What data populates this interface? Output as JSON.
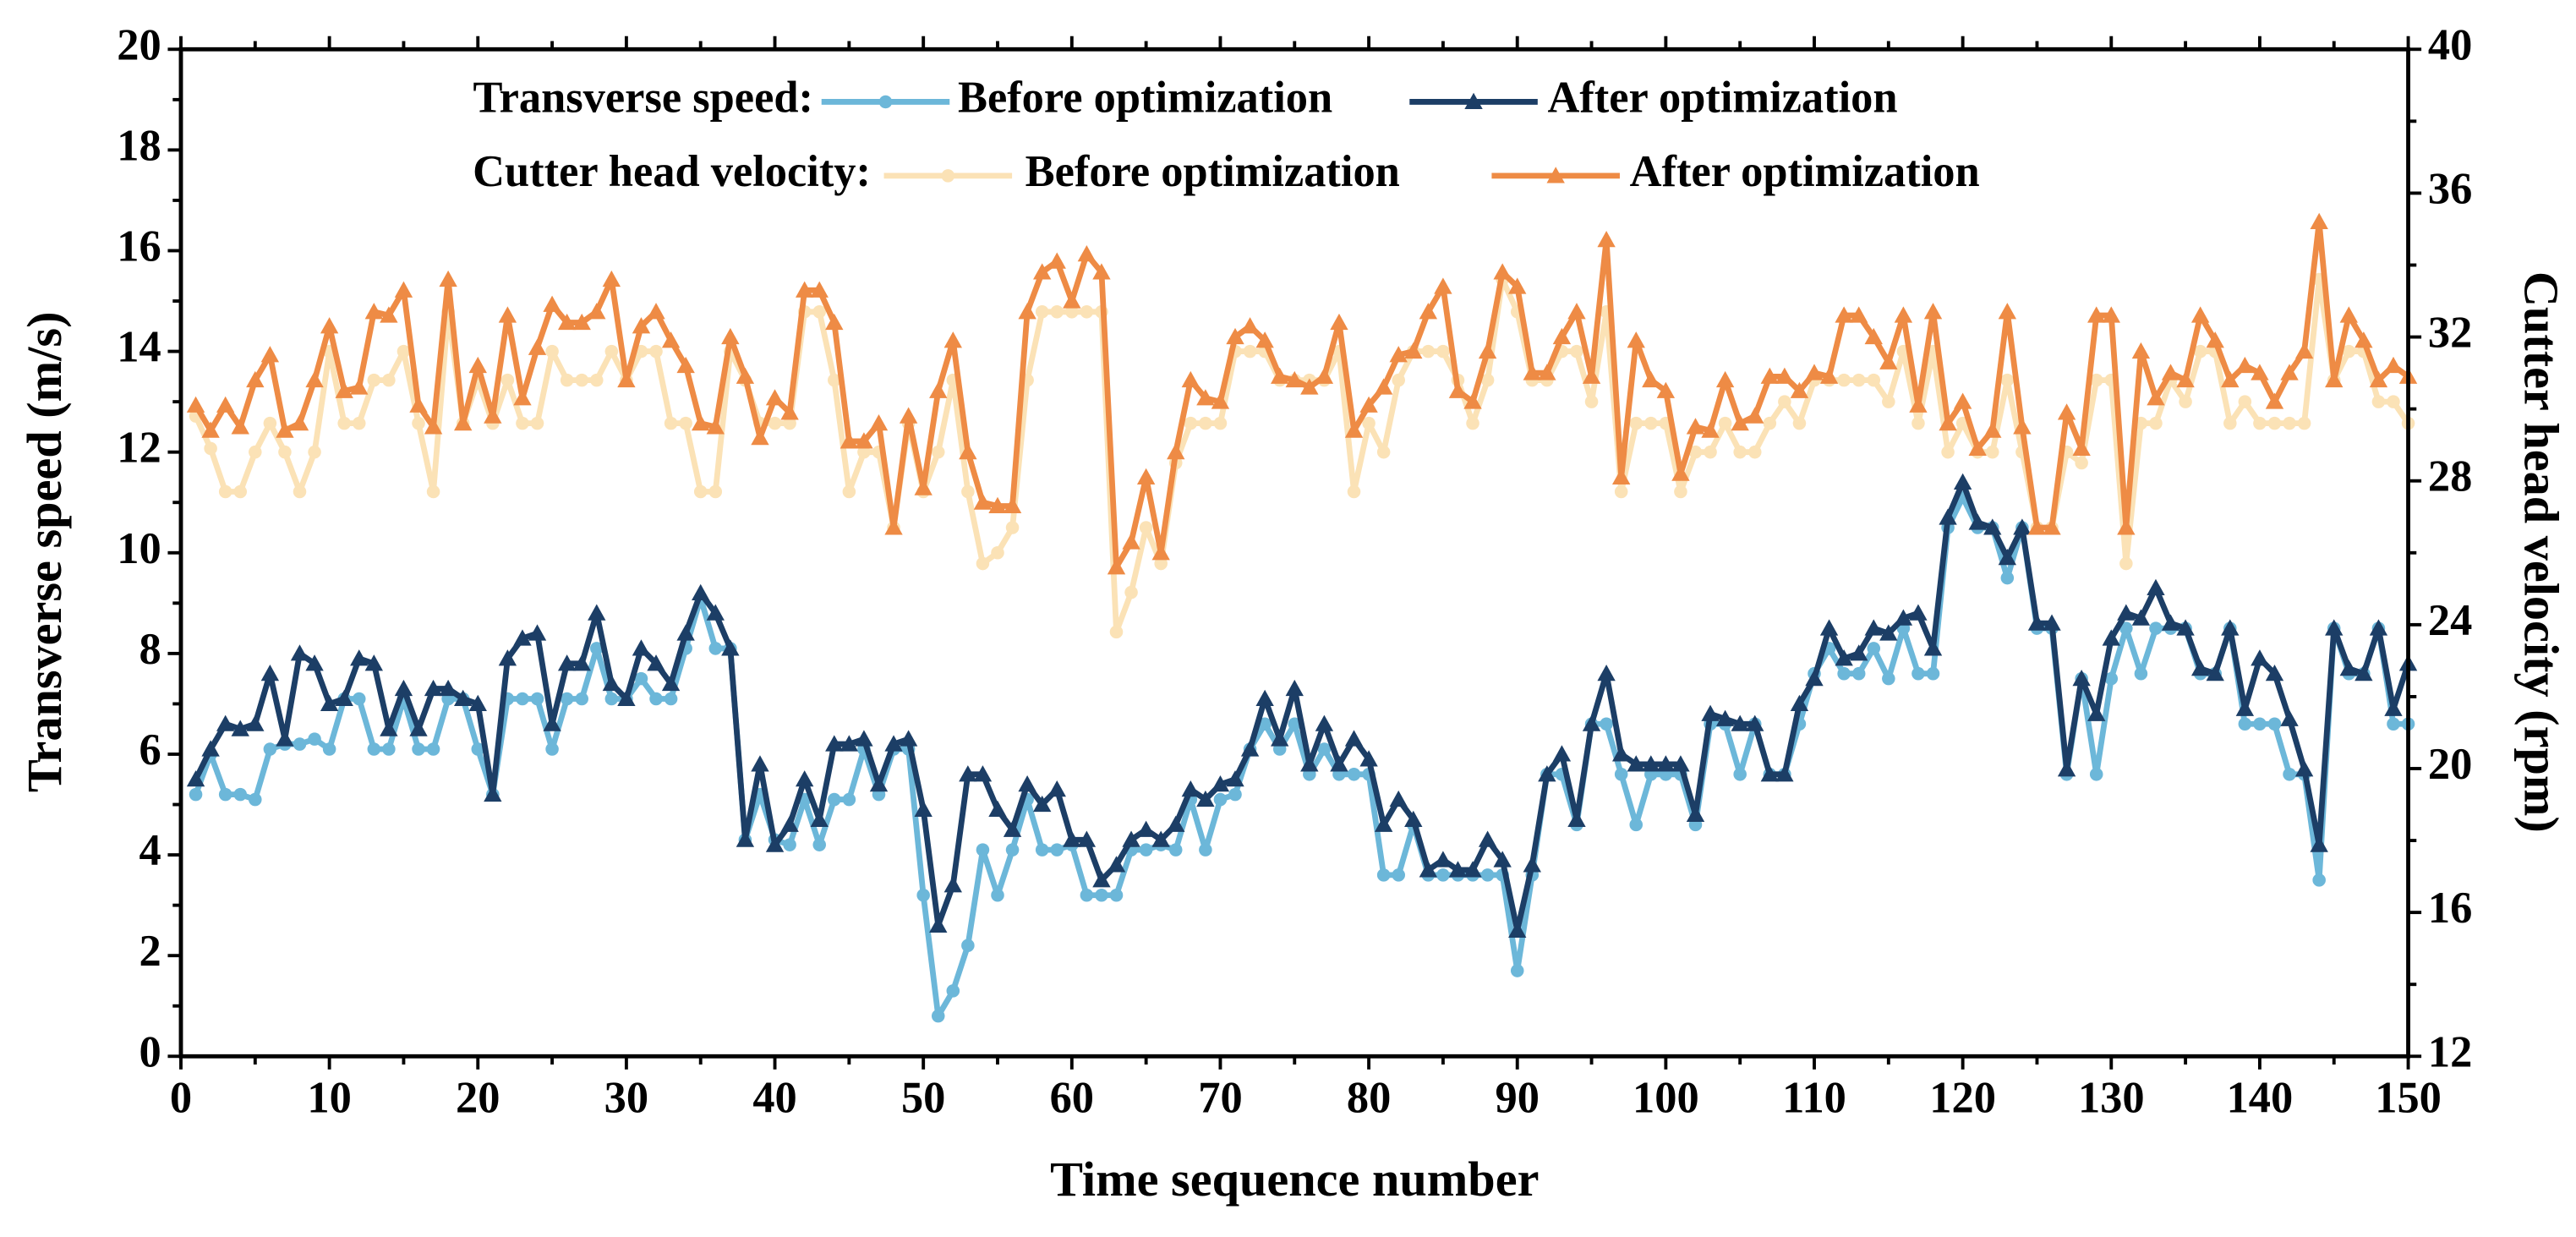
{
  "chart_data": {
    "type": "line",
    "xlabel": "Time sequence number",
    "ylabel": "Transverse speed (m/s)",
    "y2label": "Cutter head velocity (rpm)",
    "legend_groups": [
      "Transverse speed:",
      "Cutter head velocity:"
    ],
    "xlim": [
      0,
      150
    ],
    "xticks": [
      0,
      10,
      20,
      30,
      40,
      50,
      60,
      70,
      80,
      90,
      100,
      110,
      120,
      130,
      140,
      150
    ],
    "ylim": [
      0,
      20
    ],
    "yticks": [
      0,
      2,
      4,
      6,
      8,
      10,
      12,
      14,
      16,
      18,
      20
    ],
    "y2lim": [
      12,
      40
    ],
    "y2ticks": [
      12,
      16,
      20,
      24,
      28,
      32,
      36,
      40
    ],
    "grid": false,
    "legend": "top",
    "x": [
      1,
      2,
      3,
      4,
      5,
      6,
      7,
      8,
      9,
      10,
      11,
      12,
      13,
      14,
      15,
      16,
      17,
      18,
      19,
      20,
      21,
      22,
      23,
      24,
      25,
      26,
      27,
      28,
      29,
      30,
      31,
      32,
      33,
      34,
      35,
      36,
      37,
      38,
      39,
      40,
      41,
      42,
      43,
      44,
      45,
      46,
      47,
      48,
      49,
      50,
      51,
      52,
      53,
      54,
      55,
      56,
      57,
      58,
      59,
      60,
      61,
      62,
      63,
      64,
      65,
      66,
      67,
      68,
      69,
      70,
      71,
      72,
      73,
      74,
      75,
      76,
      77,
      78,
      79,
      80,
      81,
      82,
      83,
      84,
      85,
      86,
      87,
      88,
      89,
      90,
      91,
      92,
      93,
      94,
      95,
      96,
      97,
      98,
      99,
      100,
      101,
      102,
      103,
      104,
      105,
      106,
      107,
      108,
      109,
      110,
      111,
      112,
      113,
      114,
      115,
      116,
      117,
      118,
      119,
      120,
      121,
      122,
      123,
      124,
      125,
      126,
      127,
      128,
      129,
      130,
      131,
      132,
      133,
      134,
      135,
      136,
      137,
      138,
      139,
      140,
      141,
      142,
      143,
      144,
      145,
      146,
      147,
      148,
      149,
      150
    ],
    "series": [
      {
        "name": "Before optimization",
        "color": "#6cb7d9",
        "marker": "circle",
        "axis": "y",
        "values": [
          5.2,
          6.0,
          5.2,
          5.2,
          5.1,
          6.1,
          6.2,
          6.2,
          6.3,
          6.1,
          7.1,
          7.1,
          6.1,
          6.1,
          7.1,
          6.1,
          6.1,
          7.1,
          7.1,
          6.1,
          5.2,
          7.1,
          7.1,
          7.1,
          6.1,
          7.1,
          7.1,
          8.1,
          7.1,
          7.1,
          7.5,
          7.1,
          7.1,
          8.1,
          9.1,
          8.1,
          8.1,
          4.3,
          5.2,
          4.3,
          4.2,
          5.1,
          4.2,
          5.1,
          5.1,
          6.1,
          5.2,
          6.1,
          6.1,
          3.2,
          0.8,
          1.3,
          2.2,
          4.1,
          3.2,
          4.1,
          5.1,
          4.1,
          4.1,
          4.2,
          3.2,
          3.2,
          3.2,
          4.1,
          4.1,
          4.2,
          4.1,
          5.1,
          4.1,
          5.1,
          5.2,
          6.1,
          6.6,
          6.1,
          6.6,
          5.6,
          6.1,
          5.6,
          5.6,
          5.6,
          3.6,
          3.6,
          4.6,
          3.6,
          3.6,
          3.6,
          3.6,
          3.6,
          3.6,
          1.7,
          3.6,
          5.6,
          5.6,
          4.6,
          6.6,
          6.6,
          5.6,
          4.6,
          5.6,
          5.6,
          5.6,
          4.6,
          6.6,
          6.6,
          5.6,
          6.6,
          5.6,
          5.6,
          6.6,
          7.6,
          8.1,
          7.6,
          7.6,
          8.1,
          7.5,
          8.5,
          7.6,
          7.6,
          10.5,
          11.1,
          10.5,
          10.5,
          9.5,
          10.5,
          8.5,
          8.5,
          5.6,
          7.5,
          5.6,
          7.5,
          8.5,
          7.6,
          8.5,
          8.5,
          8.5,
          7.6,
          7.6,
          8.5,
          6.6,
          6.6,
          6.6,
          5.6,
          5.6,
          3.5,
          8.5,
          7.6,
          7.6,
          8.5,
          6.6,
          6.6
        ]
      },
      {
        "name": "After optimization",
        "color": "#1c3e66",
        "marker": "triangle",
        "axis": "y",
        "values": [
          5.5,
          6.1,
          6.6,
          6.5,
          6.6,
          7.6,
          6.3,
          8.0,
          7.8,
          7.0,
          7.1,
          7.9,
          7.8,
          6.5,
          7.3,
          6.5,
          7.3,
          7.3,
          7.1,
          7.0,
          5.2,
          7.9,
          8.3,
          8.4,
          6.6,
          7.8,
          7.8,
          8.8,
          7.4,
          7.1,
          8.1,
          7.8,
          7.4,
          8.4,
          9.2,
          8.8,
          8.1,
          4.3,
          5.8,
          4.2,
          4.6,
          5.5,
          4.7,
          6.2,
          6.2,
          6.3,
          5.4,
          6.2,
          6.3,
          4.9,
          2.6,
          3.4,
          5.6,
          5.6,
          4.9,
          4.5,
          5.4,
          5.0,
          5.3,
          4.3,
          4.3,
          3.5,
          3.8,
          4.3,
          4.5,
          4.3,
          4.6,
          5.3,
          5.1,
          5.4,
          5.5,
          6.1,
          7.1,
          6.3,
          7.3,
          5.8,
          6.6,
          5.8,
          6.3,
          5.9,
          4.6,
          5.1,
          4.7,
          3.7,
          3.9,
          3.7,
          3.7,
          4.3,
          3.9,
          2.5,
          3.8,
          5.6,
          6.0,
          4.7,
          6.6,
          7.6,
          6.0,
          5.8,
          5.8,
          5.8,
          5.8,
          4.8,
          6.8,
          6.7,
          6.6,
          6.6,
          5.6,
          5.6,
          7.0,
          7.5,
          8.5,
          7.9,
          8.0,
          8.5,
          8.4,
          8.7,
          8.8,
          8.1,
          10.7,
          11.4,
          10.6,
          10.5,
          9.9,
          10.5,
          8.6,
          8.6,
          5.7,
          7.5,
          6.8,
          8.3,
          8.8,
          8.7,
          9.3,
          8.6,
          8.5,
          7.7,
          7.6,
          8.5,
          6.9,
          7.9,
          7.6,
          6.7,
          5.7,
          4.2,
          8.5,
          7.7,
          7.6,
          8.5,
          6.9,
          7.8
        ]
      },
      {
        "name": "Before optimization",
        "color": "#fbe2b6",
        "marker": "circle",
        "axis": "y2",
        "values": [
          29.8,
          28.9,
          27.7,
          27.7,
          28.8,
          29.6,
          28.8,
          27.7,
          28.8,
          31.6,
          29.6,
          29.6,
          30.8,
          30.8,
          31.6,
          29.6,
          27.7,
          32.7,
          29.6,
          30.8,
          29.6,
          30.8,
          29.6,
          29.6,
          31.6,
          30.8,
          30.8,
          30.8,
          31.6,
          30.8,
          31.6,
          31.6,
          29.6,
          29.6,
          27.7,
          27.7,
          31.6,
          30.8,
          29.6,
          29.6,
          29.6,
          32.7,
          32.7,
          30.8,
          27.7,
          28.8,
          28.8,
          26.7,
          29.6,
          27.7,
          28.8,
          30.8,
          27.7,
          25.7,
          26.0,
          26.7,
          30.8,
          32.7,
          32.7,
          32.7,
          32.7,
          32.7,
          23.8,
          24.9,
          26.7,
          25.7,
          28.5,
          29.6,
          29.6,
          29.6,
          31.6,
          31.6,
          31.6,
          30.8,
          30.8,
          30.8,
          30.8,
          31.6,
          27.7,
          29.6,
          28.8,
          30.8,
          31.6,
          31.6,
          31.6,
          30.8,
          29.6,
          30.8,
          33.6,
          32.7,
          30.8,
          30.8,
          31.6,
          31.6,
          30.2,
          32.7,
          27.7,
          29.6,
          29.6,
          29.6,
          27.7,
          28.8,
          28.8,
          29.6,
          28.8,
          28.8,
          29.6,
          30.2,
          29.6,
          30.8,
          30.8,
          30.8,
          30.8,
          30.8,
          30.2,
          31.6,
          29.6,
          31.6,
          28.8,
          29.6,
          28.8,
          28.8,
          30.8,
          28.8,
          26.7,
          26.7,
          28.8,
          28.5,
          30.8,
          30.8,
          25.7,
          29.6,
          29.6,
          30.8,
          30.2,
          31.6,
          31.6,
          29.6,
          30.2,
          29.6,
          29.6,
          29.6,
          29.6,
          33.6,
          30.8,
          31.6,
          31.6,
          30.2,
          30.2,
          29.6
        ]
      },
      {
        "name": "After optimization",
        "color": "#ee8b45",
        "marker": "triangle",
        "axis": "y2",
        "values": [
          30.1,
          29.4,
          30.1,
          29.5,
          30.8,
          31.5,
          29.4,
          29.6,
          30.8,
          32.3,
          30.5,
          30.6,
          32.7,
          32.6,
          33.3,
          30.1,
          29.5,
          33.6,
          29.6,
          31.2,
          29.8,
          32.6,
          30.3,
          31.7,
          32.9,
          32.4,
          32.4,
          32.7,
          33.6,
          30.8,
          32.3,
          32.7,
          31.9,
          31.2,
          29.6,
          29.5,
          32.0,
          30.9,
          29.2,
          30.3,
          29.9,
          33.3,
          33.3,
          32.4,
          29.1,
          29.1,
          29.6,
          26.7,
          29.8,
          27.8,
          30.5,
          31.9,
          28.8,
          27.4,
          27.3,
          27.3,
          32.7,
          33.8,
          34.1,
          33.0,
          34.3,
          33.8,
          25.6,
          26.3,
          28.1,
          26.0,
          28.8,
          30.8,
          30.3,
          30.2,
          32.0,
          32.3,
          31.9,
          30.9,
          30.8,
          30.6,
          30.9,
          32.4,
          29.4,
          30.1,
          30.6,
          31.5,
          31.6,
          32.7,
          33.4,
          30.5,
          30.2,
          31.6,
          33.8,
          33.4,
          31.0,
          31.0,
          32.0,
          32.7,
          30.9,
          34.7,
          28.1,
          31.9,
          30.8,
          30.5,
          28.2,
          29.5,
          29.4,
          30.8,
          29.6,
          29.8,
          30.9,
          30.9,
          30.5,
          31.0,
          30.9,
          32.6,
          32.6,
          32.0,
          31.3,
          32.6,
          30.1,
          32.7,
          29.6,
          30.2,
          28.9,
          29.4,
          32.7,
          29.5,
          26.7,
          26.7,
          29.9,
          28.9,
          32.6,
          32.6,
          26.7,
          31.6,
          30.3,
          31.0,
          30.8,
          32.6,
          31.9,
          30.8,
          31.2,
          31.0,
          30.2,
          31.0,
          31.6,
          35.2,
          30.8,
          32.6,
          31.9,
          30.8,
          31.2,
          30.9
        ]
      }
    ]
  }
}
